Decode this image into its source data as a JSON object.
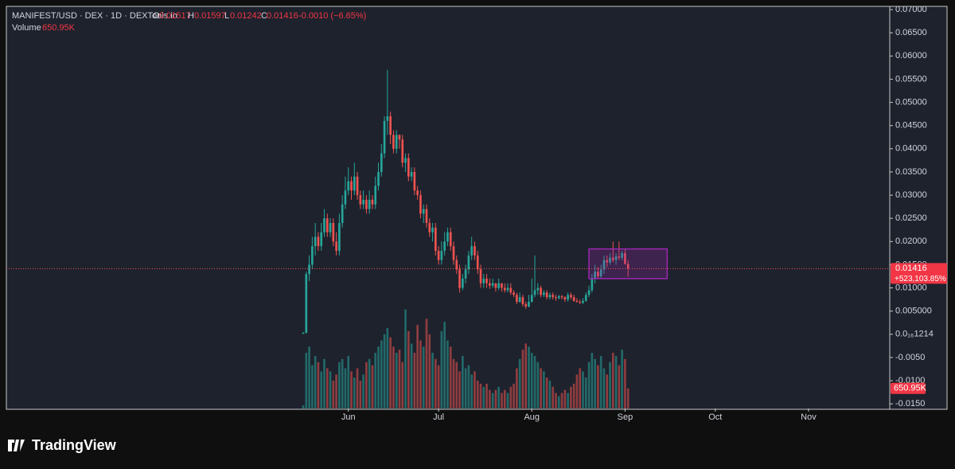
{
  "header": {
    "symbol": "MANIFEST/USD · DEX · 1D · DEXTools.io",
    "o_label": "O",
    "o": "0.01517",
    "h_label": "H",
    "h": "0.01597",
    "l_label": "L",
    "l": "0.01242",
    "c_label": "C",
    "c": "0.01416",
    "change": "-0.0010 (−6.65%)",
    "volume_label": "Volume",
    "volume": "650.95K"
  },
  "chart_data": {
    "type": "candlestick",
    "open": [
      0.0001,
      0.0003,
      0.013,
      0.015,
      0.019,
      0.021,
      0.019,
      0.022,
      0.025,
      0.022,
      0.024,
      0.02,
      0.018,
      0.024,
      0.028,
      0.031,
      0.033,
      0.031,
      0.034,
      0.03,
      0.028,
      0.029,
      0.027,
      0.029,
      0.028,
      0.032,
      0.035,
      0.039,
      0.046,
      0.047,
      0.043,
      0.04,
      0.043,
      0.042,
      0.037,
      0.038,
      0.034,
      0.035,
      0.031,
      0.03,
      0.026,
      0.027,
      0.024,
      0.022,
      0.023,
      0.018,
      0.016,
      0.018,
      0.02,
      0.022,
      0.019,
      0.016,
      0.014,
      0.01,
      0.012,
      0.014,
      0.017,
      0.019,
      0.017,
      0.014,
      0.011,
      0.012,
      0.011,
      0.0105,
      0.011,
      0.01,
      0.011,
      0.01,
      0.0095,
      0.01,
      0.009,
      0.0085,
      0.007,
      0.008,
      0.0065,
      0.006,
      0.007,
      0.0085,
      0.0095,
      0.01,
      0.0085,
      0.009,
      0.008,
      0.0085,
      0.008,
      0.0078,
      0.0082,
      0.008,
      0.0075,
      0.0085,
      0.008,
      0.0072,
      0.007,
      0.0068,
      0.0072,
      0.0085,
      0.0095,
      0.012,
      0.0135,
      0.0125,
      0.014,
      0.016,
      0.0155,
      0.0165,
      0.016,
      0.0168,
      0.0165,
      0.0175,
      0.01517
    ],
    "high": [
      0.0005,
      0.0135,
      0.017,
      0.021,
      0.024,
      0.022,
      0.024,
      0.027,
      0.026,
      0.025,
      0.025,
      0.022,
      0.026,
      0.03,
      0.034,
      0.036,
      0.034,
      0.037,
      0.035,
      0.031,
      0.031,
      0.03,
      0.031,
      0.03,
      0.034,
      0.037,
      0.041,
      0.047,
      0.057,
      0.048,
      0.044,
      0.044,
      0.043,
      0.043,
      0.039,
      0.039,
      0.036,
      0.036,
      0.032,
      0.031,
      0.028,
      0.028,
      0.025,
      0.024,
      0.024,
      0.019,
      0.02,
      0.022,
      0.023,
      0.023,
      0.02,
      0.017,
      0.015,
      0.013,
      0.015,
      0.018,
      0.021,
      0.02,
      0.018,
      0.015,
      0.013,
      0.013,
      0.012,
      0.012,
      0.011,
      0.012,
      0.011,
      0.011,
      0.011,
      0.011,
      0.0095,
      0.009,
      0.009,
      0.0085,
      0.007,
      0.0085,
      0.012,
      0.017,
      0.011,
      0.0105,
      0.0095,
      0.0095,
      0.009,
      0.009,
      0.0085,
      0.0085,
      0.0085,
      0.0082,
      0.009,
      0.009,
      0.0085,
      0.0078,
      0.0075,
      0.0078,
      0.009,
      0.0105,
      0.013,
      0.015,
      0.0145,
      0.015,
      0.017,
      0.017,
      0.0175,
      0.02,
      0.0175,
      0.02,
      0.018,
      0.0185,
      0.01597
    ],
    "low": [
      0.0001,
      0.0002,
      0.0115,
      0.014,
      0.017,
      0.018,
      0.018,
      0.021,
      0.021,
      0.021,
      0.019,
      0.017,
      0.017,
      0.023,
      0.027,
      0.03,
      0.029,
      0.03,
      0.029,
      0.027,
      0.027,
      0.026,
      0.026,
      0.027,
      0.027,
      0.031,
      0.034,
      0.038,
      0.043,
      0.041,
      0.039,
      0.039,
      0.04,
      0.036,
      0.035,
      0.033,
      0.033,
      0.03,
      0.029,
      0.025,
      0.024,
      0.023,
      0.021,
      0.02,
      0.017,
      0.015,
      0.015,
      0.017,
      0.019,
      0.018,
      0.015,
      0.013,
      0.009,
      0.0095,
      0.011,
      0.013,
      0.016,
      0.016,
      0.013,
      0.01,
      0.01,
      0.01,
      0.0098,
      0.01,
      0.0092,
      0.0095,
      0.0092,
      0.009,
      0.009,
      0.0085,
      0.008,
      0.0065,
      0.0068,
      0.006,
      0.0055,
      0.0058,
      0.0068,
      0.008,
      0.0085,
      0.008,
      0.008,
      0.0075,
      0.0075,
      0.0075,
      0.0072,
      0.0075,
      0.0075,
      0.007,
      0.007,
      0.0075,
      0.007,
      0.0068,
      0.0065,
      0.0065,
      0.007,
      0.008,
      0.009,
      0.011,
      0.012,
      0.012,
      0.013,
      0.0145,
      0.015,
      0.0155,
      0.015,
      0.016,
      0.016,
      0.015,
      0.01242
    ],
    "close": [
      0.0003,
      0.013,
      0.015,
      0.019,
      0.021,
      0.019,
      0.022,
      0.025,
      0.022,
      0.024,
      0.02,
      0.018,
      0.024,
      0.028,
      0.031,
      0.033,
      0.031,
      0.034,
      0.03,
      0.028,
      0.029,
      0.027,
      0.029,
      0.028,
      0.032,
      0.035,
      0.039,
      0.046,
      0.047,
      0.043,
      0.04,
      0.043,
      0.042,
      0.037,
      0.038,
      0.034,
      0.035,
      0.031,
      0.03,
      0.026,
      0.027,
      0.024,
      0.022,
      0.023,
      0.018,
      0.016,
      0.018,
      0.02,
      0.022,
      0.019,
      0.016,
      0.014,
      0.01,
      0.012,
      0.014,
      0.017,
      0.019,
      0.017,
      0.014,
      0.011,
      0.012,
      0.011,
      0.0105,
      0.011,
      0.01,
      0.011,
      0.01,
      0.0095,
      0.01,
      0.009,
      0.0085,
      0.007,
      0.008,
      0.0065,
      0.006,
      0.007,
      0.0085,
      0.0095,
      0.01,
      0.0085,
      0.009,
      0.008,
      0.0085,
      0.008,
      0.0078,
      0.0082,
      0.008,
      0.0075,
      0.0085,
      0.008,
      0.0072,
      0.007,
      0.0068,
      0.0072,
      0.0085,
      0.0095,
      0.012,
      0.0135,
      0.0125,
      0.014,
      0.016,
      0.0155,
      0.0165,
      0.016,
      0.0168,
      0.0165,
      0.0175,
      0.01517,
      0.01416
    ],
    "volume": [
      100000,
      1800000,
      2000000,
      1400000,
      1700000,
      1500000,
      1200000,
      1600000,
      1300000,
      1200000,
      900000,
      1100000,
      1500000,
      1600000,
      1300000,
      1700000,
      1200000,
      1000000,
      1300000,
      900000,
      1100000,
      1500000,
      1600000,
      1400000,
      1800000,
      2000000,
      2200000,
      2400000,
      2600000,
      2300000,
      2000000,
      1800000,
      1900000,
      1500000,
      3200000,
      2500000,
      2100000,
      1800000,
      2700000,
      2200000,
      2000000,
      2900000,
      2400000,
      1800000,
      1600000,
      1400000,
      2500000,
      2800000,
      2200000,
      2000000,
      1600000,
      1500000,
      1200000,
      1700000,
      1300000,
      1400000,
      1100000,
      1200000,
      900000,
      800000,
      700000,
      800000,
      600000,
      500000,
      600000,
      700000,
      500000,
      600000,
      500000,
      700000,
      800000,
      1300000,
      1600000,
      1900000,
      2100000,
      2000000,
      1800000,
      1700000,
      1500000,
      1300000,
      1200000,
      1000000,
      900000,
      700000,
      500000,
      400000,
      500000,
      600000,
      500000,
      700000,
      800000,
      1100000,
      1300000,
      1200000,
      1000000,
      1500000,
      1800000,
      1600000,
      1400000,
      1700000,
      1300000,
      1100000,
      1500000,
      1800000,
      1700000,
      1400000,
      1900000,
      1600000,
      650950
    ],
    "volume_value_label": "650.95K",
    "volume_lim": [
      0,
      13000000
    ],
    "up_color": "#26a69a",
    "down_color": "#ef5350",
    "xlim": [
      -98.7,
      195
    ],
    "xticks": [
      {
        "value": 15,
        "label": "Jun"
      },
      {
        "value": 45,
        "label": "Jul"
      },
      {
        "value": 76,
        "label": "Aug"
      },
      {
        "value": 107,
        "label": "Sep"
      },
      {
        "value": 137,
        "label": "Oct"
      },
      {
        "value": 168,
        "label": "Nov"
      }
    ],
    "ylim": [
      -0.016,
      0.0707
    ],
    "yticks": [
      {
        "value": 0.07,
        "label": "0.07000"
      },
      {
        "value": 0.065,
        "label": "0.06500"
      },
      {
        "value": 0.06,
        "label": "0.06000"
      },
      {
        "value": 0.055,
        "label": "0.05500"
      },
      {
        "value": 0.05,
        "label": "0.05000"
      },
      {
        "value": 0.045,
        "label": "0.04500"
      },
      {
        "value": 0.04,
        "label": "0.04000"
      },
      {
        "value": 0.035,
        "label": "0.03500"
      },
      {
        "value": 0.03,
        "label": "0.03000"
      },
      {
        "value": 0.025,
        "label": "0.02500"
      },
      {
        "value": 0.02,
        "label": "0.02000"
      },
      {
        "value": 0.015,
        "label": "0.01500"
      },
      {
        "value": 0.01,
        "label": "0.01000"
      },
      {
        "value": 0.005,
        "label": "0.005000"
      },
      {
        "value": 0,
        "label": "0.0₁₆1214"
      },
      {
        "value": -0.005,
        "label": "-0.0050"
      },
      {
        "value": -0.01,
        "label": "-0.0100"
      },
      {
        "value": -0.015,
        "label": "-0.0150"
      }
    ],
    "last_price": 0.01416,
    "last_price_label": "0.01416",
    "last_change_label": "+523,103.85%",
    "box": {
      "x": [
        95,
        121
      ],
      "y": [
        0.012,
        0.0184
      ],
      "color": "#9c27b0"
    }
  },
  "footer": {
    "brand": "TradingView"
  }
}
